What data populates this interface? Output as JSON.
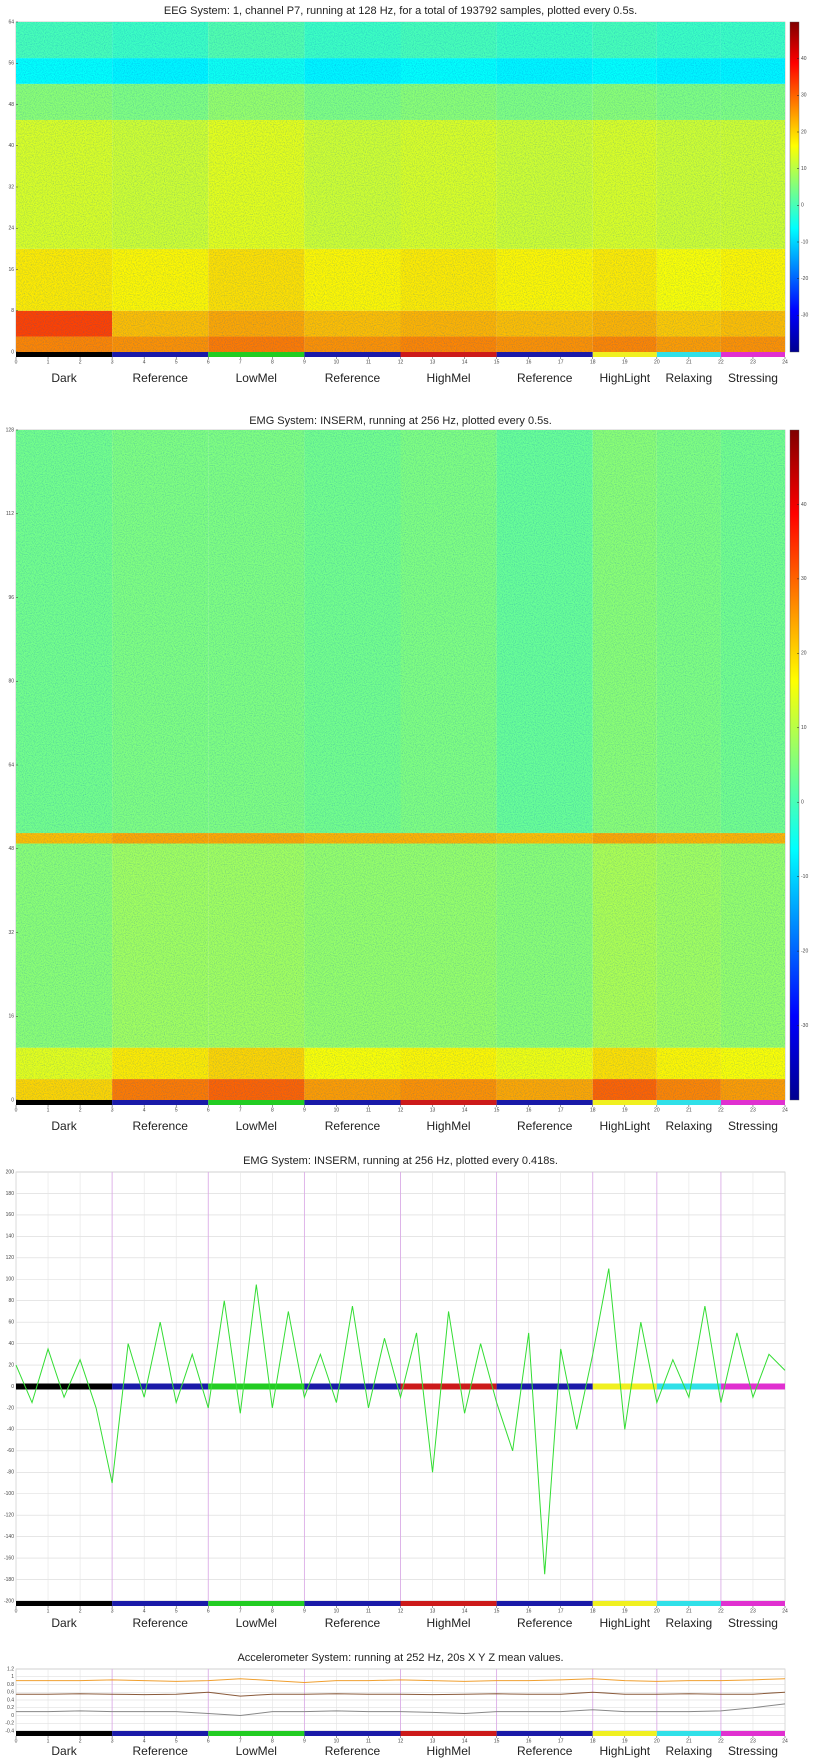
{
  "phases": [
    {
      "label": "Dark",
      "start": 0,
      "end": 3,
      "color": "#000000"
    },
    {
      "label": "Reference",
      "start": 3,
      "end": 6,
      "color": "#1a1aa8"
    },
    {
      "label": "LowMel",
      "start": 6,
      "end": 9,
      "color": "#22cc22"
    },
    {
      "label": "Reference",
      "start": 9,
      "end": 12,
      "color": "#1a1aa8"
    },
    {
      "label": "HighMel",
      "start": 12,
      "end": 15,
      "color": "#cc1a1a"
    },
    {
      "label": "Reference",
      "start": 15,
      "end": 18,
      "color": "#1a1aa8"
    },
    {
      "label": "HighLight",
      "start": 18,
      "end": 20,
      "color": "#f0f020"
    },
    {
      "label": "Relaxing",
      "start": 20,
      "end": 22,
      "color": "#30e0e8"
    },
    {
      "label": "Stressing",
      "start": 22,
      "end": 24,
      "color": "#e030d0"
    }
  ],
  "chart_data": [
    {
      "type": "heatmap",
      "title": "EEG System: 1, channel P7, running at 128 Hz, for a total of 193792 samples, plotted every 0.5s.",
      "xbins": [
        0,
        3,
        6,
        9,
        12,
        15,
        18,
        20,
        22,
        24
      ],
      "ybins": [
        0,
        3,
        8,
        20,
        45,
        52,
        57,
        64
      ],
      "z": [
        [
          27,
          26,
          28,
          26,
          27,
          26,
          27,
          25,
          26
        ],
        [
          33,
          22,
          24,
          22,
          23,
          22,
          23,
          21,
          22
        ],
        [
          18,
          17,
          19,
          17,
          18,
          17,
          18,
          16,
          17
        ],
        [
          13,
          12,
          14,
          12,
          13,
          12,
          13,
          12,
          12
        ],
        [
          6,
          5,
          7,
          5,
          6,
          5,
          6,
          5,
          5
        ],
        [
          -6,
          -7,
          -5,
          -7,
          -6,
          -7,
          -6,
          -7,
          -7
        ],
        [
          0,
          -1,
          1,
          -1,
          0,
          -1,
          0,
          -1,
          -1
        ]
      ],
      "zlim": [
        -40,
        50
      ],
      "zticks": [
        -30,
        -20,
        -10,
        0,
        10,
        20,
        30,
        40
      ],
      "xlim": [
        0,
        24
      ],
      "xticks": [
        0,
        1,
        2,
        3,
        4,
        5,
        6,
        7,
        8,
        9,
        10,
        11,
        12,
        13,
        14,
        15,
        16,
        17,
        18,
        19,
        20,
        21,
        22,
        23,
        24
      ],
      "ylim": [
        0,
        64
      ],
      "yticks": [
        0,
        8,
        16,
        24,
        32,
        40,
        48,
        56,
        64
      ]
    },
    {
      "type": "heatmap",
      "title": "EMG System: INSERM, running at 256 Hz, plotted every 0.5s.",
      "xbins": [
        0,
        3,
        6,
        9,
        12,
        15,
        18,
        20,
        22,
        24
      ],
      "ybins": [
        0,
        4,
        10,
        49,
        51,
        128
      ],
      "z": [
        [
          20,
          28,
          30,
          25,
          26,
          24,
          30,
          27,
          25
        ],
        [
          14,
          18,
          20,
          16,
          17,
          15,
          19,
          17,
          16
        ],
        [
          6,
          8,
          8,
          7,
          7,
          6,
          9,
          8,
          7
        ],
        [
          22,
          24,
          24,
          23,
          23,
          22,
          24,
          23,
          23
        ],
        [
          4,
          5,
          5,
          4,
          5,
          3,
          6,
          5,
          4
        ]
      ],
      "zlim": [
        -40,
        50
      ],
      "zticks": [
        -30,
        -20,
        -10,
        0,
        10,
        20,
        30,
        40
      ],
      "xlim": [
        0,
        24
      ],
      "xticks": [
        0,
        1,
        2,
        3,
        4,
        5,
        6,
        7,
        8,
        9,
        10,
        11,
        12,
        13,
        14,
        15,
        16,
        17,
        18,
        19,
        20,
        21,
        22,
        23,
        24
      ],
      "ylim": [
        0,
        128
      ],
      "yticks": [
        0,
        16,
        32,
        48,
        64,
        80,
        96,
        112,
        128
      ]
    },
    {
      "type": "line",
      "title": "EMG System: INSERM, running at 256 Hz, plotted every 0.418s.",
      "x": [
        0,
        0.5,
        1,
        1.5,
        2,
        2.5,
        3,
        3.5,
        4,
        4.5,
        5,
        5.5,
        6,
        6.5,
        7,
        7.5,
        8,
        8.5,
        9,
        9.5,
        10,
        10.5,
        11,
        11.5,
        12,
        12.5,
        13,
        13.5,
        14,
        14.5,
        15,
        15.5,
        16,
        16.5,
        17,
        17.5,
        18,
        18.5,
        19,
        19.5,
        20,
        20.5,
        21,
        21.5,
        22,
        22.5,
        23,
        23.5,
        24
      ],
      "series": [
        {
          "color": "#33dd33",
          "values": [
            20,
            -15,
            35,
            -10,
            25,
            -20,
            -90,
            40,
            -10,
            60,
            -15,
            30,
            -20,
            80,
            -25,
            95,
            -20,
            70,
            -10,
            30,
            -15,
            75,
            -20,
            45,
            -10,
            50,
            -80,
            70,
            -25,
            40,
            -15,
            -60,
            50,
            -175,
            35,
            -40,
            30,
            110,
            -40,
            60,
            -15,
            25,
            -10,
            75,
            -15,
            50,
            -10,
            30,
            15
          ]
        }
      ],
      "phase_bar_at_zero": true,
      "grid": true,
      "xlim": [
        0,
        24
      ],
      "xticks": [
        0,
        1,
        2,
        3,
        4,
        5,
        6,
        7,
        8,
        9,
        10,
        11,
        12,
        13,
        14,
        15,
        16,
        17,
        18,
        19,
        20,
        21,
        22,
        23,
        24
      ],
      "ylim": [
        -200,
        200
      ],
      "yticks": [
        -200,
        -180,
        -160,
        -140,
        -120,
        -100,
        -80,
        -60,
        -40,
        -20,
        0,
        20,
        40,
        60,
        80,
        100,
        120,
        140,
        160,
        180,
        200
      ]
    },
    {
      "type": "line",
      "title": "Accelerometer System: running at 252 Hz, 20s X Y Z mean values.",
      "x": [
        0,
        1,
        2,
        3,
        4,
        5,
        6,
        7,
        8,
        9,
        10,
        11,
        12,
        13,
        14,
        15,
        16,
        17,
        18,
        19,
        20,
        21,
        22,
        23,
        24
      ],
      "series": [
        {
          "color": "#f0a030",
          "values": [
            0.9,
            0.9,
            0.9,
            0.92,
            0.9,
            0.88,
            0.9,
            0.95,
            0.9,
            0.85,
            0.9,
            0.9,
            0.92,
            0.9,
            0.88,
            0.9,
            0.9,
            0.92,
            0.95,
            0.9,
            0.88,
            0.9,
            0.9,
            0.92,
            0.95
          ]
        },
        {
          "color": "#8a5a3a",
          "values": [
            0.55,
            0.55,
            0.56,
            0.55,
            0.54,
            0.55,
            0.6,
            0.5,
            0.55,
            0.55,
            0.56,
            0.55,
            0.55,
            0.54,
            0.55,
            0.56,
            0.55,
            0.55,
            0.6,
            0.55,
            0.55,
            0.56,
            0.55,
            0.55,
            0.6
          ]
        },
        {
          "color": "#888888",
          "values": [
            0.1,
            0.1,
            0.12,
            0.1,
            0.1,
            0.1,
            0.05,
            0,
            0.1,
            0.1,
            0.12,
            0.1,
            0.1,
            0.08,
            0.05,
            0.1,
            0.1,
            0.1,
            0.15,
            0.1,
            0.1,
            0.1,
            0.12,
            0.2,
            0.3
          ]
        }
      ],
      "grid": true,
      "xlim": [
        0,
        24
      ],
      "xticks": [
        0,
        1,
        2,
        3,
        4,
        5,
        6,
        7,
        8,
        9,
        10,
        11,
        12,
        13,
        14,
        15,
        16,
        17,
        18,
        19,
        20,
        21,
        22,
        23,
        24
      ],
      "ylim": [
        -0.4,
        1.2
      ],
      "yticks": [
        -0.4,
        -0.2,
        0,
        0.2,
        0.4,
        0.6,
        0.8,
        1,
        1.2
      ]
    }
  ]
}
